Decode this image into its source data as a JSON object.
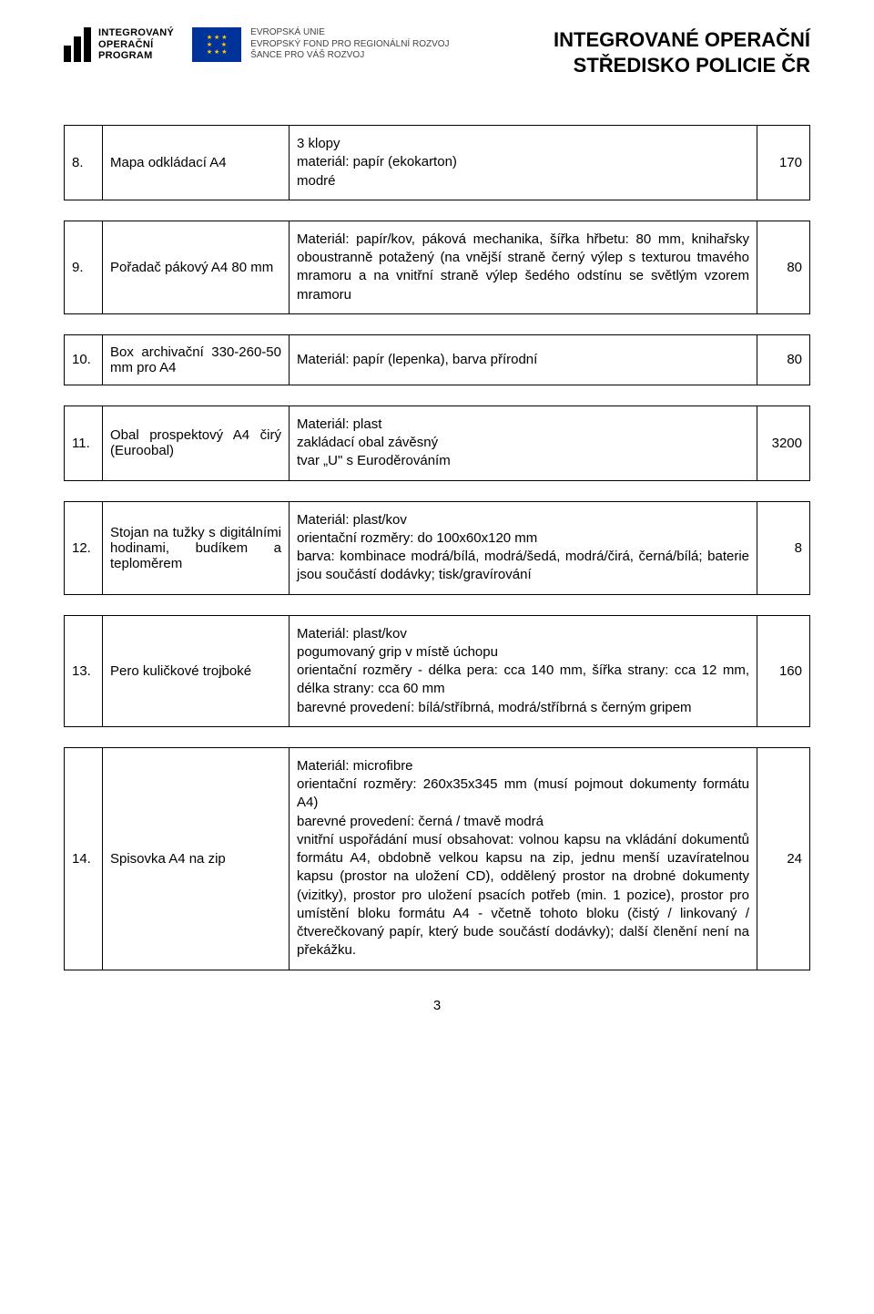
{
  "header": {
    "iop_label_line1": "INTEGROVANÝ",
    "iop_label_line2": "OPERAČNÍ",
    "iop_label_line3": "PROGRAM",
    "eu_line1": "EVROPSKÁ UNIE",
    "eu_line2": "EVROPSKÝ FOND PRO REGIONÁLNÍ ROZVOJ",
    "eu_line3": "ŠANCE PRO VÁŠ ROZVOJ",
    "title_line1": "INTEGROVANÉ OPERAČNÍ",
    "title_line2": "STŘEDISKO POLICIE ČR"
  },
  "rows": [
    {
      "num": "8.",
      "name": "Mapa odkládací A4",
      "desc": "3 klopy\nmateriál: papír (ekokarton)\nmodré",
      "qty": "170"
    },
    {
      "num": "9.",
      "name": "Pořadač pákový A4 80 mm",
      "desc": "Materiál: papír/kov, páková mechanika, šířka hřbetu: 80 mm, knihařsky oboustranně potažený (na vnější straně černý výlep s texturou tmavého mramoru a na vnitřní straně výlep šedého odstínu se světlým vzorem mramoru",
      "qty": "80"
    },
    {
      "num": "10.",
      "name": "Box archivační 330-260-50 mm pro A4",
      "desc": "Materiál: papír (lepenka), barva přírodní",
      "qty": "80"
    },
    {
      "num": "11.",
      "name": "Obal prospektový A4 čirý (Euroobal)",
      "desc": "Materiál: plast\nzakládací obal závěsný\ntvar „U\" s Euroděrováním",
      "qty": "3200"
    },
    {
      "num": "12.",
      "name": "Stojan na tužky s digitálními hodinami, budíkem a teploměrem",
      "desc": "Materiál: plast/kov\norientační rozměry: do 100x60x120 mm\nbarva: kombinace modrá/bílá, modrá/šedá, modrá/čirá, černá/bílá; baterie jsou součástí dodávky; tisk/gravírování",
      "qty": "8"
    },
    {
      "num": "13.",
      "name": "Pero kuličkové trojboké",
      "desc": "Materiál: plast/kov\npogumovaný grip v místě úchopu\norientační rozměry - délka pera: cca 140 mm, šířka strany: cca 12 mm, délka strany: cca 60 mm\nbarevné provedení: bílá/stříbrná, modrá/stříbrná s černým gripem",
      "qty": "160"
    },
    {
      "num": "14.",
      "name": "Spisovka A4 na zip",
      "desc": "Materiál: microfibre\norientační rozměry: 260x35x345 mm (musí pojmout dokumenty formátu A4)\nbarevné provedení: černá / tmavě modrá\nvnitřní uspořádání musí obsahovat: volnou kapsu na vkládání dokumentů formátu A4, obdobně velkou kapsu na zip, jednu menší uzavíratelnou kapsu (prostor na uložení CD), oddělený prostor na drobné dokumenty (vizitky), prostor pro uložení psacích potřeb (min. 1 pozice), prostor pro umístění bloku formátu A4 - včetně tohoto bloku (čistý / linkovaný / čtverečkovaný papír, který bude součástí dodávky); další členění není na překážku.",
      "qty": "24"
    }
  ],
  "page_number": "3",
  "colors": {
    "text": "#000000",
    "bg": "#ffffff",
    "eu_flag_bg": "#003399",
    "eu_star": "#ffcc00",
    "eu_text": "#444444"
  }
}
